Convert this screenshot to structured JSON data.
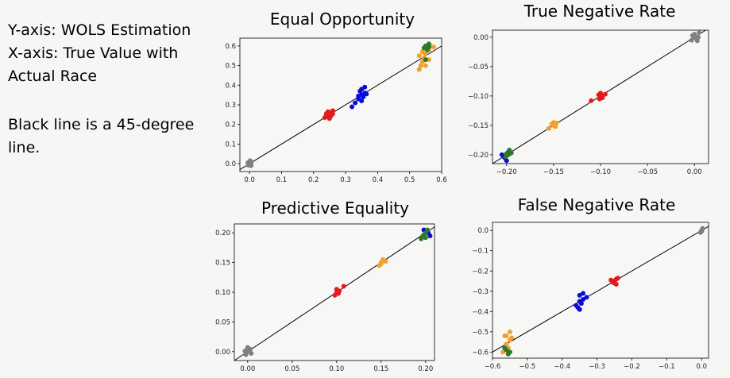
{
  "notes": {
    "line1": "Y-axis: WOLS Estimation",
    "line2": "X-axis: True Value with",
    "line3": "Actual Race",
    "line4": "Black line is a 45-degree",
    "line5": "line."
  },
  "colors": {
    "gray": "#808080",
    "red": "#e41a1c",
    "blue": "#0b0bd9",
    "orange": "#f0a030",
    "green": "#2a7a2a",
    "line": "#000000"
  },
  "chart_data": [
    {
      "type": "scatter",
      "title": "Equal Opportunity",
      "xlim": [
        -0.03,
        0.6
      ],
      "ylim": [
        -0.04,
        0.64
      ],
      "xticks": [
        0.0,
        0.1,
        0.2,
        0.3,
        0.4,
        0.5,
        0.6
      ],
      "yticks": [
        0.0,
        0.1,
        0.2,
        0.3,
        0.4,
        0.5,
        0.6
      ],
      "tick_decimals": 1,
      "series": [
        {
          "color": "gray",
          "points": [
            [
              0.0,
              0.0
            ],
            [
              0.0,
              0.01
            ],
            [
              0.005,
              -0.01
            ],
            [
              -0.005,
              0.005
            ],
            [
              0.002,
              0.015
            ],
            [
              0.004,
              -0.004
            ],
            [
              -0.003,
              -0.008
            ],
            [
              0.006,
              0.008
            ]
          ]
        },
        {
          "color": "red",
          "points": [
            [
              0.24,
              0.24
            ],
            [
              0.245,
              0.25
            ],
            [
              0.25,
              0.26
            ],
            [
              0.255,
              0.245
            ],
            [
              0.26,
              0.255
            ],
            [
              0.235,
              0.235
            ],
            [
              0.25,
              0.23
            ],
            [
              0.26,
              0.27
            ],
            [
              0.245,
              0.265
            ],
            [
              0.24,
              0.255
            ]
          ]
        },
        {
          "color": "blue",
          "points": [
            [
              0.32,
              0.29
            ],
            [
              0.33,
              0.31
            ],
            [
              0.34,
              0.33
            ],
            [
              0.35,
              0.35
            ],
            [
              0.36,
              0.36
            ],
            [
              0.345,
              0.37
            ],
            [
              0.35,
              0.38
            ],
            [
              0.36,
              0.39
            ],
            [
              0.355,
              0.34
            ],
            [
              0.34,
              0.345
            ],
            [
              0.365,
              0.355
            ],
            [
              0.35,
              0.32
            ]
          ]
        },
        {
          "color": "orange",
          "points": [
            [
              0.53,
              0.48
            ],
            [
              0.535,
              0.5
            ],
            [
              0.54,
              0.52
            ],
            [
              0.545,
              0.54
            ],
            [
              0.55,
              0.56
            ],
            [
              0.56,
              0.58
            ],
            [
              0.565,
              0.6
            ],
            [
              0.53,
              0.55
            ],
            [
              0.55,
              0.5
            ],
            [
              0.575,
              0.595
            ],
            [
              0.54,
              0.57
            ],
            [
              0.56,
              0.53
            ]
          ]
        },
        {
          "color": "green",
          "points": [
            [
              0.55,
              0.6
            ],
            [
              0.56,
              0.61
            ],
            [
              0.555,
              0.58
            ],
            [
              0.545,
              0.59
            ],
            [
              0.56,
              0.595
            ],
            [
              0.55,
              0.53
            ]
          ]
        }
      ]
    },
    {
      "type": "scatter",
      "title": "True Negative Rate",
      "xlim": [
        -0.215,
        0.015
      ],
      "ylim": [
        -0.215,
        0.012
      ],
      "xticks": [
        -0.2,
        -0.15,
        -0.1,
        -0.05,
        0.0
      ],
      "yticks": [
        0.0,
        -0.05,
        -0.1,
        -0.15,
        -0.2
      ],
      "tick_decimals": 2,
      "series": [
        {
          "color": "gray",
          "points": [
            [
              0.0,
              0.0
            ],
            [
              0.0,
              0.005
            ],
            [
              0.005,
              0.008
            ],
            [
              -0.003,
              -0.005
            ],
            [
              0.002,
              -0.002
            ],
            [
              -0.002,
              0.003
            ],
            [
              0.004,
              0.0
            ],
            [
              0.003,
              -0.006
            ]
          ]
        },
        {
          "color": "red",
          "points": [
            [
              -0.1,
              -0.1
            ],
            [
              -0.1,
              -0.095
            ],
            [
              -0.098,
              -0.103
            ],
            [
              -0.102,
              -0.098
            ],
            [
              -0.095,
              -0.097
            ],
            [
              -0.101,
              -0.105
            ],
            [
              -0.11,
              -0.108
            ]
          ]
        },
        {
          "color": "orange",
          "points": [
            [
              -0.15,
              -0.15
            ],
            [
              -0.152,
              -0.148
            ],
            [
              -0.148,
              -0.152
            ],
            [
              -0.15,
              -0.145
            ],
            [
              -0.155,
              -0.155
            ],
            [
              -0.147,
              -0.146
            ]
          ]
        },
        {
          "color": "blue",
          "points": [
            [
              -0.2,
              -0.2
            ],
            [
              -0.202,
              -0.205
            ],
            [
              -0.198,
              -0.195
            ],
            [
              -0.205,
              -0.2
            ],
            [
              -0.2,
              -0.21
            ]
          ]
        },
        {
          "color": "green",
          "points": [
            [
              -0.198,
              -0.2
            ],
            [
              -0.2,
              -0.198
            ],
            [
              -0.195,
              -0.197
            ],
            [
              -0.201,
              -0.203
            ],
            [
              -0.197,
              -0.192
            ],
            [
              -0.199,
              -0.2
            ]
          ]
        }
      ]
    },
    {
      "type": "scatter",
      "title": "Predictive Equality",
      "xlim": [
        -0.015,
        0.21
      ],
      "ylim": [
        -0.015,
        0.215
      ],
      "xticks": [
        0.0,
        0.05,
        0.1,
        0.15,
        0.2
      ],
      "yticks": [
        0.0,
        0.05,
        0.1,
        0.15,
        0.2
      ],
      "tick_decimals": 2,
      "series": [
        {
          "color": "gray",
          "points": [
            [
              0.0,
              0.0
            ],
            [
              -0.002,
              -0.005
            ],
            [
              0.003,
              0.004
            ],
            [
              0.0,
              0.007
            ],
            [
              -0.003,
              0.001
            ],
            [
              0.004,
              -0.003
            ],
            [
              0.002,
              0.002
            ]
          ]
        },
        {
          "color": "red",
          "points": [
            [
              0.1,
              0.1
            ],
            [
              0.102,
              0.098
            ],
            [
              0.098,
              0.095
            ],
            [
              0.1,
              0.105
            ],
            [
              0.108,
              0.11
            ],
            [
              0.103,
              0.102
            ]
          ]
        },
        {
          "color": "orange",
          "points": [
            [
              0.15,
              0.15
            ],
            [
              0.152,
              0.155
            ],
            [
              0.148,
              0.145
            ],
            [
              0.155,
              0.152
            ],
            [
              0.15,
              0.148
            ]
          ]
        },
        {
          "color": "blue",
          "points": [
            [
              0.2,
              0.2
            ],
            [
              0.203,
              0.2
            ],
            [
              0.205,
              0.195
            ],
            [
              0.198,
              0.205
            ]
          ]
        },
        {
          "color": "green",
          "points": [
            [
              0.2,
              0.2
            ],
            [
              0.197,
              0.195
            ],
            [
              0.195,
              0.19
            ],
            [
              0.202,
              0.205
            ],
            [
              0.199,
              0.198
            ],
            [
              0.2,
              0.192
            ]
          ]
        }
      ]
    },
    {
      "type": "scatter",
      "title": "False Negative Rate",
      "xlim": [
        -0.6,
        0.02
      ],
      "ylim": [
        -0.63,
        0.04
      ],
      "xticks": [
        -0.6,
        -0.5,
        -0.4,
        -0.3,
        -0.2,
        -0.1,
        0.0
      ],
      "yticks": [
        0.0,
        -0.1,
        -0.2,
        -0.3,
        -0.4,
        -0.5,
        -0.6
      ],
      "tick_decimals": 1,
      "series": [
        {
          "color": "gray",
          "points": [
            [
              0.0,
              0.0
            ],
            [
              -0.003,
              -0.01
            ],
            [
              0.003,
              0.01
            ],
            [
              0.0,
              -0.004
            ],
            [
              0.002,
              0.005
            ]
          ]
        },
        {
          "color": "red",
          "points": [
            [
              -0.25,
              -0.25
            ],
            [
              -0.245,
              -0.24
            ],
            [
              -0.25,
              -0.26
            ],
            [
              -0.255,
              -0.255
            ],
            [
              -0.24,
              -0.235
            ],
            [
              -0.26,
              -0.245
            ],
            [
              -0.245,
              -0.265
            ]
          ]
        },
        {
          "color": "blue",
          "points": [
            [
              -0.35,
              -0.35
            ],
            [
              -0.34,
              -0.34
            ],
            [
              -0.345,
              -0.36
            ],
            [
              -0.355,
              -0.38
            ],
            [
              -0.36,
              -0.37
            ],
            [
              -0.35,
              -0.32
            ],
            [
              -0.34,
              -0.31
            ],
            [
              -0.33,
              -0.33
            ],
            [
              -0.35,
              -0.39
            ]
          ]
        },
        {
          "color": "orange",
          "points": [
            [
              -0.56,
              -0.52
            ],
            [
              -0.55,
              -0.5
            ],
            [
              -0.545,
              -0.53
            ],
            [
              -0.56,
              -0.56
            ],
            [
              -0.555,
              -0.58
            ],
            [
              -0.57,
              -0.6
            ],
            [
              -0.55,
              -0.54
            ],
            [
              -0.565,
              -0.52
            ]
          ]
        },
        {
          "color": "green",
          "points": [
            [
              -0.55,
              -0.6
            ],
            [
              -0.56,
              -0.59
            ],
            [
              -0.555,
              -0.61
            ],
            [
              -0.565,
              -0.58
            ]
          ]
        }
      ]
    }
  ]
}
